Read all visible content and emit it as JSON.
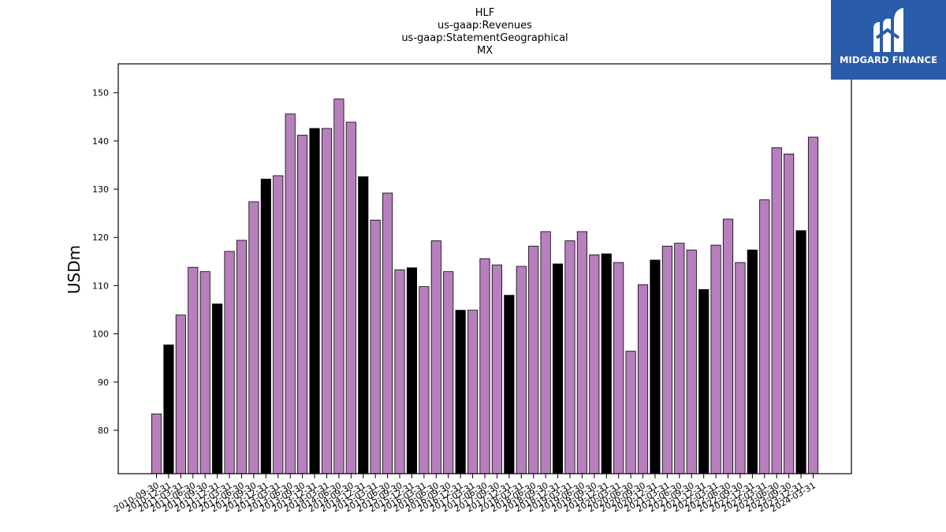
{
  "logo": {
    "text": "MIDGARD FINANCE",
    "background": "#2a5caa"
  },
  "colors": {
    "bar_default": "#b77fbd",
    "bar_highlight": "#000000",
    "bar_edge": "#000000"
  },
  "chart_data": {
    "type": "bar",
    "title_lines": [
      "HLF",
      "us-gaap:Revenues",
      "us-gaap:StatementGeographical",
      "MX"
    ],
    "xlabel": "",
    "ylabel": "USDm",
    "ylim": [
      71,
      156
    ],
    "yticks": [
      80,
      90,
      100,
      110,
      120,
      130,
      140,
      150
    ],
    "grid": false,
    "categories": [
      "2010-09-30",
      "2010-12-31",
      "2011-03-31",
      "2011-06-30",
      "2011-09-30",
      "2011-12-31",
      "2012-03-31",
      "2012-06-30",
      "2012-09-30",
      "2012-12-31",
      "2013-03-31",
      "2013-06-30",
      "2013-09-30",
      "2013-12-31",
      "2014-03-31",
      "2014-06-30",
      "2014-09-30",
      "2014-12-31",
      "2015-03-31",
      "2015-06-30",
      "2015-09-30",
      "2015-12-31",
      "2016-03-31",
      "2016-06-30",
      "2016-09-30",
      "2016-12-31",
      "2017-03-31",
      "2017-06-30",
      "2017-09-30",
      "2017-12-31",
      "2018-03-31",
      "2018-06-30",
      "2018-09-30",
      "2018-12-31",
      "2019-03-31",
      "2019-06-30",
      "2019-09-30",
      "2019-12-31",
      "2020-03-31",
      "2020-06-30",
      "2020-09-30",
      "2020-12-31",
      "2021-03-31",
      "2021-06-30",
      "2021-09-30",
      "2021-12-31",
      "2022-03-31",
      "2022-06-30",
      "2022-09-30",
      "2022-12-31",
      "2023-03-31",
      "2023-06-30",
      "2023-09-30",
      "2023-12-31",
      "2024-03-31"
    ],
    "values": [
      83.4,
      97.7,
      103.9,
      113.8,
      112.9,
      106.2,
      117.1,
      119.4,
      127.4,
      132.1,
      132.8,
      145.6,
      141.2,
      142.6,
      142.6,
      148.7,
      143.9,
      132.6,
      123.6,
      129.2,
      113.3,
      113.7,
      109.8,
      119.3,
      112.9,
      104.9,
      104.9,
      115.6,
      114.3,
      108.0,
      114.0,
      118.2,
      121.2,
      114.5,
      119.3,
      121.2,
      116.4,
      116.6,
      114.8,
      96.4,
      110.2,
      115.3,
      118.2,
      118.8,
      117.4,
      109.2,
      118.4,
      123.8,
      114.8,
      117.4,
      127.8,
      138.6,
      137.3,
      121.4,
      140.8
    ],
    "highlight_categories": [
      "2010-12-31",
      "2011-12-31",
      "2012-12-31",
      "2013-12-31",
      "2014-12-31",
      "2015-12-31",
      "2016-12-31",
      "2017-12-31",
      "2018-12-31",
      "2019-12-31",
      "2020-12-31",
      "2021-12-31",
      "2022-12-31",
      "2023-12-31"
    ]
  }
}
